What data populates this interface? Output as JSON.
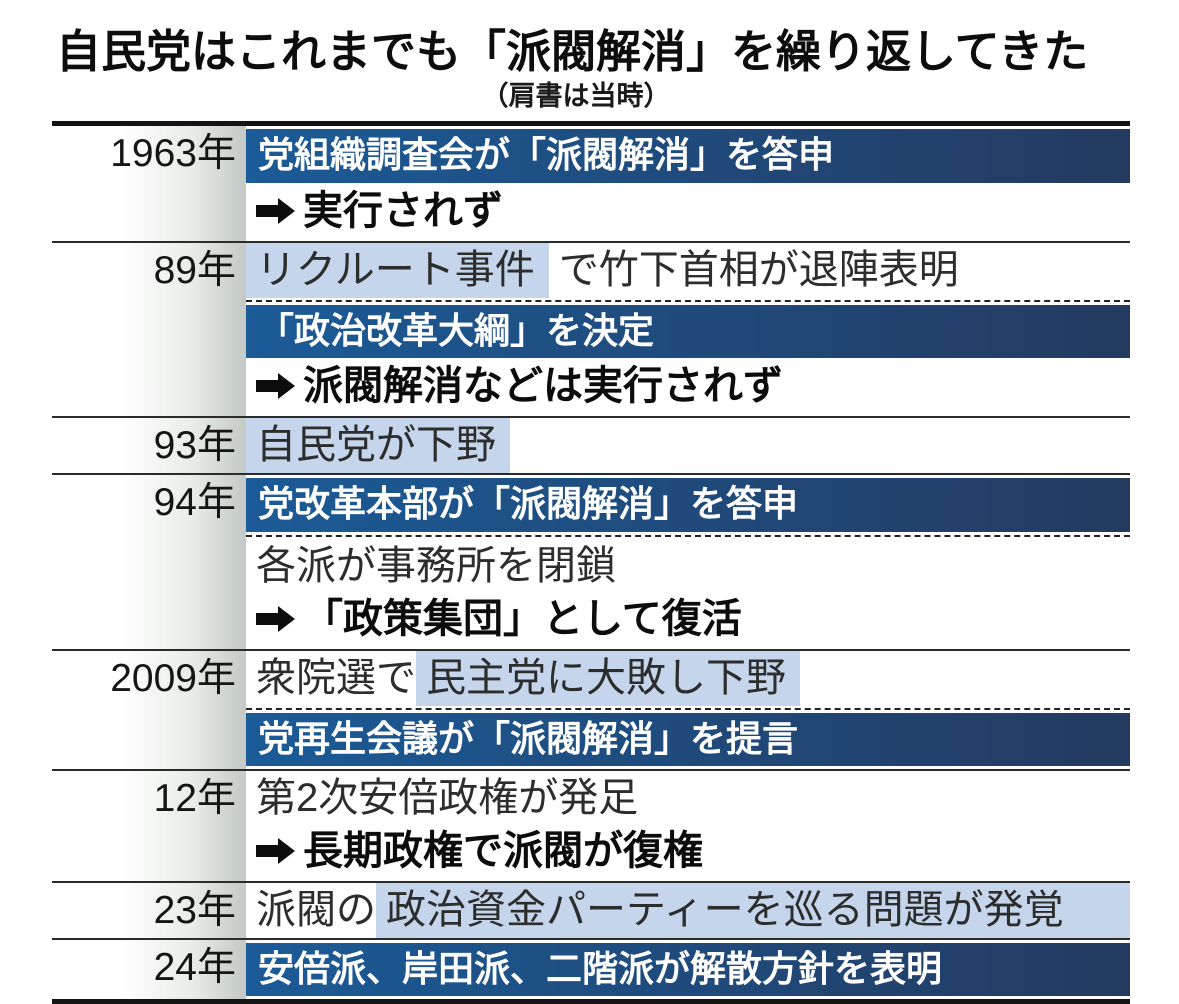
{
  "header": {
    "title": "自民党はこれまでも「派閥解消」を繰り返してきた",
    "subtitle": "（肩書は当時）"
  },
  "colors": {
    "banner_gradient_start": "#1b5b97",
    "banner_gradient_end": "#243a60",
    "highlight": "#c5d5eb",
    "year_column_gray": "#c3c9c5",
    "border_dark": "#141414"
  },
  "arrow_icon": "black-right-arrow",
  "rows": [
    {
      "year": "1963年",
      "items": [
        {
          "type": "banner",
          "text": "党組織調査会が「派閥解消」を答申"
        },
        {
          "type": "arrow",
          "text": "実行されず"
        }
      ]
    },
    {
      "year": "89年",
      "items": [
        {
          "type": "line",
          "segments": [
            {
              "text": "リクルート事件",
              "highlight": true
            },
            {
              "text": "で竹下首相が退陣表明",
              "highlight": false
            }
          ]
        },
        {
          "type": "dashed"
        },
        {
          "type": "banner",
          "text": "「政治改革大綱」を決定"
        },
        {
          "type": "arrow",
          "text": "派閥解消などは実行されず"
        }
      ]
    },
    {
      "year": "93年",
      "items": [
        {
          "type": "line",
          "segments": [
            {
              "text": "自民党が下野",
              "highlight": true
            }
          ]
        }
      ]
    },
    {
      "year": "94年",
      "items": [
        {
          "type": "banner",
          "text": "党改革本部が「派閥解消」を答申"
        },
        {
          "type": "dashed"
        },
        {
          "type": "line",
          "segments": [
            {
              "text": "各派が事務所を閉鎖",
              "highlight": false
            }
          ]
        },
        {
          "type": "arrow",
          "text": "「政策集団」として復活"
        }
      ]
    },
    {
      "year": "2009年",
      "items": [
        {
          "type": "line",
          "segments": [
            {
              "text": "衆院選で",
              "highlight": false
            },
            {
              "text": "民主党に大敗し下野",
              "highlight": true
            }
          ]
        },
        {
          "type": "dashed"
        },
        {
          "type": "banner",
          "text": "党再生会議が「派閥解消」を提言"
        }
      ]
    },
    {
      "year": "12年",
      "items": [
        {
          "type": "line",
          "segments": [
            {
              "text": "第2次安倍政権が発足",
              "highlight": false
            }
          ]
        },
        {
          "type": "arrow",
          "text": "長期政権で派閥が復権"
        }
      ]
    },
    {
      "year": "23年",
      "items": [
        {
          "type": "line",
          "segments": [
            {
              "text": "派閥の",
              "highlight": false
            },
            {
              "text": "政治資金パーティーを巡る問題が発覚",
              "highlight": true,
              "fill": true
            }
          ]
        }
      ]
    },
    {
      "year": "24年",
      "items": [
        {
          "type": "banner",
          "text": "安倍派、岸田派、二階派が解散方針を表明"
        }
      ]
    }
  ]
}
